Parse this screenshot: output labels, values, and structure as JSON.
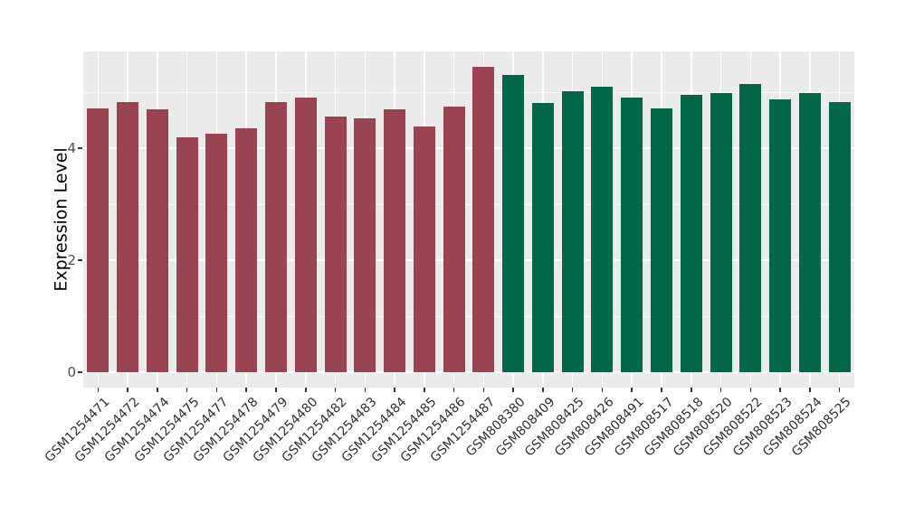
{
  "chart": {
    "panel_background": "#EBEBEB",
    "grid_color": "#FFFFFF",
    "tick_text_color": "#4D4D4D",
    "axis_title_color": "#000000"
  },
  "chart_data": {
    "type": "bar",
    "title": "",
    "xlabel": "",
    "ylabel": "Expression Level",
    "ylim": [
      -0.27,
      5.73
    ],
    "y_major_ticks": [
      0,
      2,
      4
    ],
    "y_minor_gridlines": [
      1,
      3,
      5
    ],
    "grid": "on",
    "legend_position": "none",
    "categories": [
      "GSM1254471",
      "GSM1254472",
      "GSM1254474",
      "GSM1254475",
      "GSM1254477",
      "GSM1254478",
      "GSM1254479",
      "GSM1254480",
      "GSM1254482",
      "GSM1254483",
      "GSM1254484",
      "GSM1254485",
      "GSM1254486",
      "GSM1254487",
      "GSM808380",
      "GSM808409",
      "GSM808425",
      "GSM808426",
      "GSM808491",
      "GSM808517",
      "GSM808518",
      "GSM808520",
      "GSM808522",
      "GSM808523",
      "GSM808524",
      "GSM808525"
    ],
    "values": [
      4.71,
      4.83,
      4.7,
      4.19,
      4.26,
      4.35,
      4.82,
      4.91,
      4.57,
      4.53,
      4.7,
      4.39,
      4.75,
      5.45,
      5.31,
      4.81,
      5.01,
      5.1,
      4.9,
      4.71,
      4.95,
      4.98,
      5.15,
      4.87,
      4.98,
      4.82
    ],
    "bar_groups": [
      "maroon",
      "maroon",
      "maroon",
      "maroon",
      "maroon",
      "maroon",
      "maroon",
      "maroon",
      "maroon",
      "maroon",
      "maroon",
      "maroon",
      "maroon",
      "maroon",
      "green",
      "green",
      "green",
      "green",
      "green",
      "green",
      "green",
      "green",
      "green",
      "green",
      "green",
      "green"
    ],
    "group_colors": {
      "maroon": "#9A4351",
      "green": "#006848"
    }
  }
}
